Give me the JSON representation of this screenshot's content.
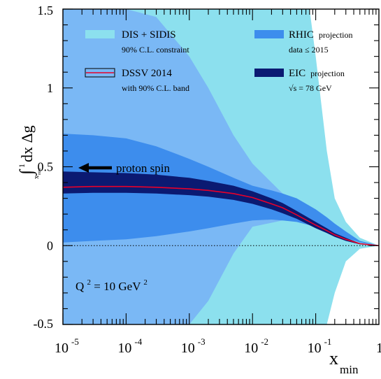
{
  "chart_data": {
    "type": "area",
    "title": "",
    "xscale": "log",
    "xlim": [
      1e-05,
      1
    ],
    "ylim": [
      -0.5,
      1.5
    ],
    "xlabel": {
      "main": "x",
      "sub": "min"
    },
    "ylabel": {
      "integral": "∫",
      "upper": "1",
      "lower_main": "x",
      "lower_sub": "min",
      "main": "dx Δg"
    },
    "y_ticks": [
      {
        "value": -0.5,
        "label": "-0.5"
      },
      {
        "value": 0,
        "label": "0"
      },
      {
        "value": 0.5,
        "label": "0.5"
      },
      {
        "value": 1,
        "label": "1"
      },
      {
        "value": 1.5,
        "label": "1.5"
      }
    ],
    "x_ticks": [
      {
        "value": 1e-05,
        "base": "10",
        "exp": "-5"
      },
      {
        "value": 0.0001,
        "base": "10",
        "exp": "-4"
      },
      {
        "value": 0.001,
        "base": "10",
        "exp": "-3"
      },
      {
        "value": 0.01,
        "base": "10",
        "exp": "-2"
      },
      {
        "value": 0.1,
        "base": "10",
        "exp": "-1"
      },
      {
        "value": 1,
        "base": "1",
        "exp": ""
      }
    ],
    "zero_line": true,
    "legend": [
      {
        "key": "dis",
        "line1": "DIS + SIDIS",
        "line2": "90% C.L. constraint"
      },
      {
        "key": "rhic",
        "line1_main": "RHIC",
        "line1_small": "projection",
        "line2": "data ≤ 2015"
      },
      {
        "key": "dssv",
        "line1": "DSSV 2014",
        "line2": "with 90% C.L. band"
      },
      {
        "key": "eic",
        "line1_main": "EIC",
        "line1_small": "projection",
        "line2": "√s = 78 GeV"
      }
    ],
    "annotations": {
      "proton_spin": {
        "text": "proton spin",
        "x": 0.00018,
        "y": 0.5
      },
      "q2": {
        "prefix": "Q",
        "sup1": "2",
        "middle": " = 10 GeV",
        "sup2": "2"
      }
    },
    "colors": {
      "dis": "#8ce0ee",
      "dssv_band": "#7ab8f5",
      "rhic": "#3d8ded",
      "eic": "#0b1a72",
      "central": "#e8002a"
    },
    "series": [
      {
        "key": "dis",
        "x": [
          1e-05,
          3e-05,
          0.0001,
          0.0003,
          0.001,
          0.003,
          0.01,
          0.03,
          0.05,
          0.08,
          0.1,
          0.15,
          0.2,
          0.3,
          0.5,
          1
        ],
        "upper": [
          1.5,
          1.5,
          1.5,
          1.5,
          1.5,
          1.5,
          1.5,
          1.5,
          1.5,
          1.5,
          1.2,
          0.6,
          0.3,
          0.15,
          0.05,
          0.0
        ],
        "lower": [
          -0.5,
          -0.5,
          -0.5,
          -0.5,
          -0.5,
          -0.5,
          -0.5,
          -0.5,
          -0.5,
          -0.5,
          -0.5,
          -0.5,
          -0.3,
          -0.1,
          -0.02,
          0.0
        ]
      },
      {
        "key": "dssv",
        "x": [
          1e-05,
          3e-05,
          0.0001,
          0.0003,
          0.001,
          0.002,
          0.005,
          0.01,
          0.03,
          0.05,
          0.1,
          0.15,
          0.2,
          0.3,
          0.5,
          1
        ],
        "upper": [
          1.5,
          1.5,
          1.5,
          1.45,
          1.2,
          1.0,
          0.7,
          0.52,
          0.33,
          0.26,
          0.19,
          0.15,
          0.12,
          0.08,
          0.03,
          0.0
        ],
        "lower": [
          -0.5,
          -0.5,
          -0.5,
          -0.5,
          -0.5,
          -0.35,
          -0.05,
          0.12,
          0.16,
          0.16,
          0.14,
          0.11,
          0.08,
          0.05,
          0.02,
          0.0
        ]
      },
      {
        "key": "rhic",
        "x": [
          1e-05,
          3e-05,
          0.0001,
          0.0003,
          0.001,
          0.002,
          0.005,
          0.01,
          0.02,
          0.03,
          0.05,
          0.1,
          0.15,
          0.2,
          0.3,
          0.5,
          1
        ],
        "upper": [
          0.71,
          0.7,
          0.68,
          0.63,
          0.55,
          0.5,
          0.43,
          0.38,
          0.35,
          0.33,
          0.3,
          0.23,
          0.18,
          0.14,
          0.09,
          0.03,
          0.0
        ],
        "lower": [
          0.02,
          0.03,
          0.04,
          0.06,
          0.09,
          0.11,
          0.14,
          0.16,
          0.165,
          0.16,
          0.15,
          0.12,
          0.1,
          0.07,
          0.05,
          0.02,
          0.0
        ]
      },
      {
        "key": "eic",
        "x": [
          1e-05,
          3e-05,
          0.0001,
          0.0003,
          0.001,
          0.002,
          0.005,
          0.01,
          0.02,
          0.03,
          0.05,
          0.1,
          0.15,
          0.2,
          0.3,
          0.5,
          1
        ],
        "upper": [
          0.47,
          0.465,
          0.46,
          0.45,
          0.43,
          0.41,
          0.38,
          0.345,
          0.3,
          0.27,
          0.22,
          0.15,
          0.11,
          0.08,
          0.05,
          0.015,
          0.0
        ],
        "lower": [
          0.33,
          0.335,
          0.335,
          0.33,
          0.32,
          0.31,
          0.29,
          0.265,
          0.23,
          0.205,
          0.17,
          0.11,
          0.08,
          0.055,
          0.03,
          0.008,
          0.0
        ]
      },
      {
        "key": "central",
        "x": [
          1e-05,
          3e-05,
          0.0001,
          0.0003,
          0.001,
          0.002,
          0.005,
          0.01,
          0.02,
          0.03,
          0.05,
          0.1,
          0.15,
          0.2,
          0.3,
          0.5,
          1
        ],
        "y": [
          0.37,
          0.375,
          0.375,
          0.37,
          0.36,
          0.35,
          0.33,
          0.305,
          0.265,
          0.24,
          0.195,
          0.13,
          0.095,
          0.068,
          0.04,
          0.012,
          0.0
        ]
      }
    ]
  }
}
